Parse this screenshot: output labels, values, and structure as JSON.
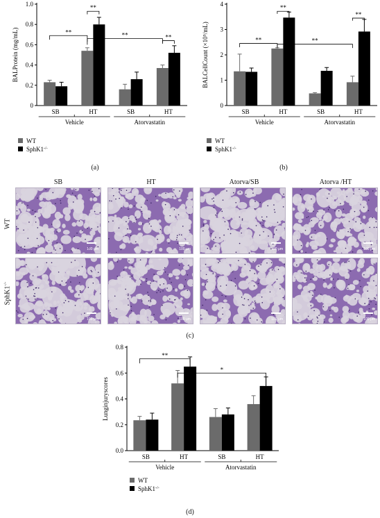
{
  "colors": {
    "wt": "#6b6b6b",
    "ko": "#000000",
    "tissue": "#7b5aa0",
    "lumen": "#d9d4de"
  },
  "legend": {
    "wt": "WT",
    "ko": "SphK1",
    "ko_sup": "-/-"
  },
  "group_labels": {
    "vehicle": "Vehicle",
    "atorvastatin": "Atorvastatin"
  },
  "panel_labels": {
    "a": "(a)",
    "b": "(b)",
    "c": "(c)",
    "d": "(d)"
  },
  "chart_data": [
    {
      "type": "bar",
      "panel": "a",
      "ylabel": "BALProtein (mg/mL)",
      "ylim": [
        0,
        1.0
      ],
      "yticks": [
        "0",
        "0.2",
        "0.4",
        "0.6",
        "0.8",
        "1.0"
      ],
      "categories": [
        "SB",
        "HT",
        "SB",
        "HT"
      ],
      "series": [
        {
          "name": "WT",
          "values": [
            0.23,
            0.54,
            0.16,
            0.37
          ],
          "errors": [
            0.02,
            0.03,
            0.05,
            0.03
          ]
        },
        {
          "name": "SphK1-/-",
          "values": [
            0.19,
            0.8,
            0.26,
            0.52
          ],
          "errors": [
            0.04,
            0.07,
            0.07,
            0.07
          ]
        }
      ],
      "significance": [
        "**",
        "**",
        "**",
        "**"
      ]
    },
    {
      "type": "bar",
      "panel": "b",
      "ylabel": "BALCellCount (×10⁵/mL)",
      "ylim": [
        0,
        4
      ],
      "yticks": [
        "0",
        "1",
        "2",
        "3",
        "4"
      ],
      "categories": [
        "SB",
        "HT",
        "SB",
        "HT"
      ],
      "series": [
        {
          "name": "WT",
          "values": [
            1.35,
            2.25,
            0.48,
            0.92
          ],
          "errors": [
            0.68,
            0.03,
            0.03,
            0.24
          ]
        },
        {
          "name": "SphK1-/-",
          "values": [
            1.33,
            3.47,
            1.37,
            2.92
          ],
          "errors": [
            0.15,
            0.22,
            0.13,
            0.48
          ]
        }
      ],
      "significance": [
        "**",
        "**",
        "**",
        "**"
      ]
    },
    {
      "type": "bar",
      "panel": "d",
      "ylabel": "Lunginjuryscores",
      "ylim": [
        0,
        0.8
      ],
      "yticks": [
        "0.0",
        "0.2",
        "0.4",
        "0.6",
        "0.8"
      ],
      "categories": [
        "SB",
        "HT",
        "SB",
        "HT"
      ],
      "series": [
        {
          "name": "WT",
          "values": [
            0.235,
            0.52,
            0.26,
            0.36
          ],
          "errors": [
            0.03,
            0.1,
            0.065,
            0.065
          ]
        },
        {
          "name": "SphK1-/-",
          "values": [
            0.24,
            0.65,
            0.28,
            0.5
          ],
          "errors": [
            0.05,
            0.075,
            0.05,
            0.07
          ]
        }
      ],
      "significance": [
        "**",
        "*"
      ]
    }
  ],
  "histology": {
    "columns": [
      "SB",
      "HT",
      "Atorva/SB",
      "Atorva /HT"
    ],
    "rows": [
      "WT",
      "SphK1"
    ],
    "row_sup": "-/-",
    "scale_text": "100 μm"
  }
}
